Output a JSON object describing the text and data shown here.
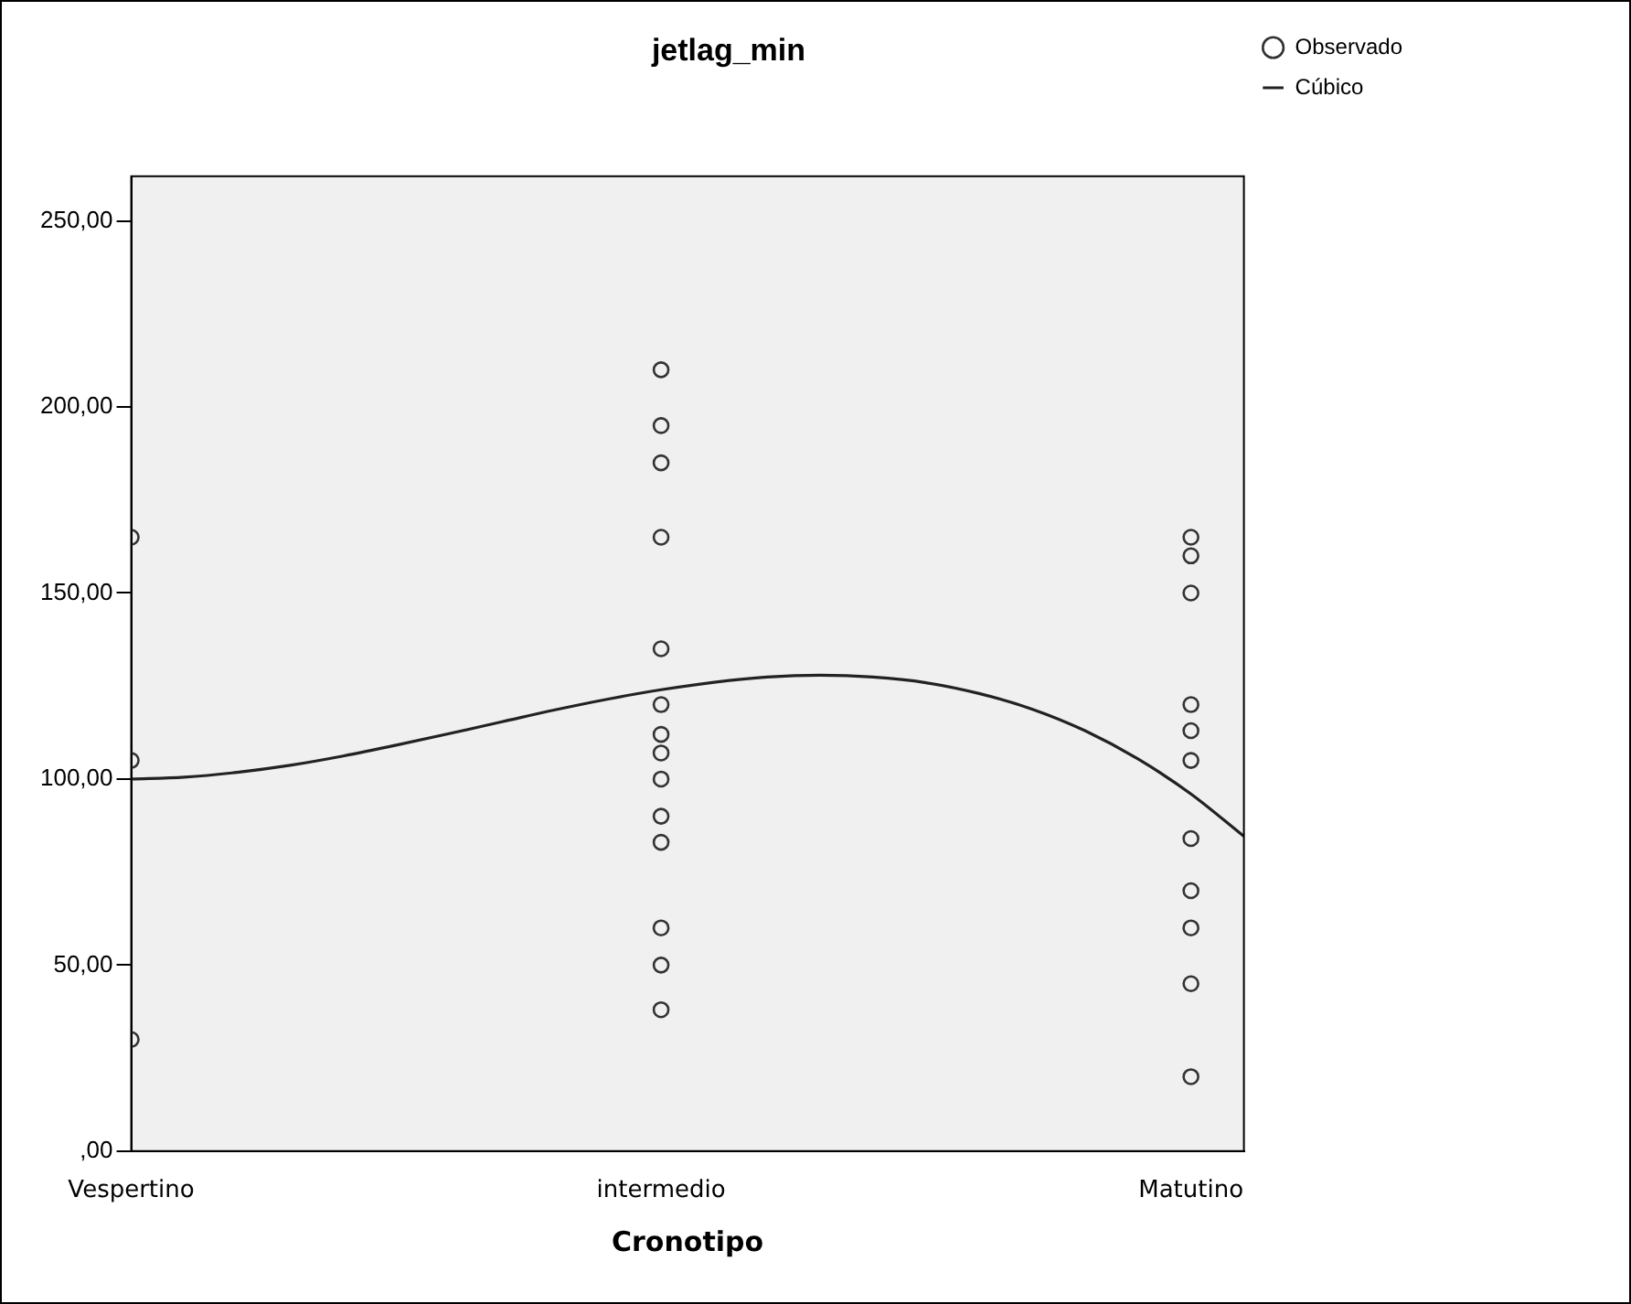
{
  "chart_data": {
    "type": "scatter",
    "title": "jetlag_min",
    "xlabel": "Cronotipo",
    "categories": [
      "Vespertino",
      null,
      null,
      null,
      null,
      null,
      null,
      null,
      null,
      null,
      "intermedio",
      null,
      null,
      null,
      null,
      null,
      null,
      null,
      null,
      null,
      "Matutino",
      null
    ],
    "ylim": [
      0,
      262
    ],
    "yticks": [
      {
        "value": 0,
        "label": ",00"
      },
      {
        "value": 50,
        "label": "50,00"
      },
      {
        "value": 100,
        "label": "100,00"
      },
      {
        "value": 150,
        "label": "150,00"
      },
      {
        "value": 200,
        "label": "200,00"
      },
      {
        "value": 250,
        "label": "250,00"
      }
    ],
    "grid": false,
    "legend": "top right",
    "series": [
      {
        "name": "Observado",
        "color": "#333333",
        "marker": "circle",
        "x": [
          "Vespertino",
          "Vespertino",
          "Vespertino",
          "intermedio",
          "intermedio",
          "intermedio",
          "intermedio",
          "intermedio",
          "intermedio",
          "intermedio",
          "intermedio",
          "intermedio",
          "intermedio",
          "intermedio",
          "intermedio",
          "intermedio",
          "intermedio",
          "Matutino",
          "Matutino",
          "Matutino",
          "Matutino",
          "Matutino",
          "Matutino",
          "Matutino",
          "Matutino",
          "Matutino",
          "Matutino",
          "Matutino"
        ],
        "values": [
          165,
          105,
          30,
          210,
          195,
          185,
          165,
          135,
          120,
          112,
          107,
          100,
          90,
          83,
          60,
          50,
          38,
          165,
          160,
          150,
          120,
          113,
          105,
          84,
          70,
          60,
          45,
          20
        ]
      },
      {
        "name": "Cúbico",
        "type": "line",
        "color": "#222222",
        "line_style": "solid",
        "values": [
          100,
          100.5,
          101.8,
          103.7,
          106.2,
          109.1,
          112.2,
          115.4,
          118.6,
          121.5,
          124,
          126,
          127.4,
          127.9,
          127.4,
          125.9,
          123,
          118.8,
          113,
          105.4,
          96,
          84.6
        ]
      }
    ]
  }
}
